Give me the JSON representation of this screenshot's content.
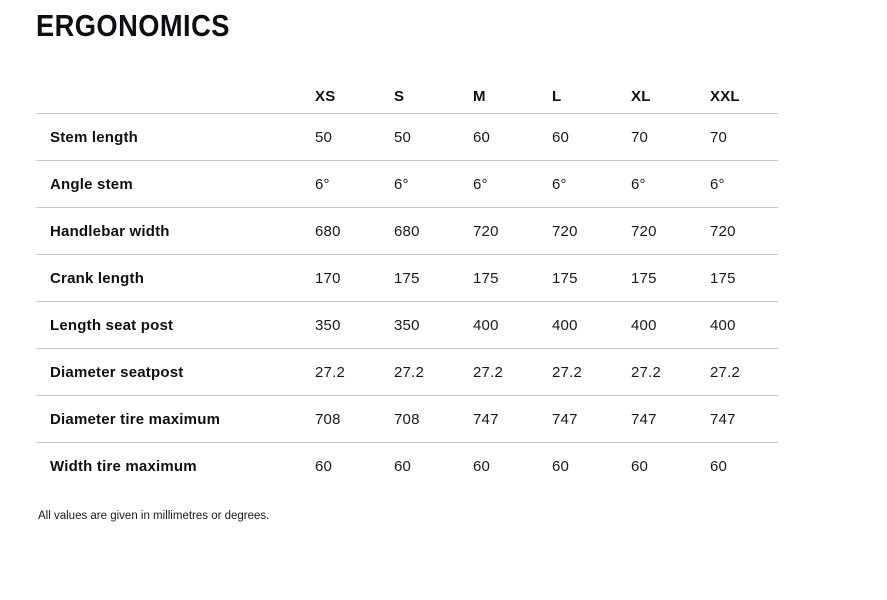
{
  "page": {
    "title": "ERGONOMICS",
    "footnote": "All values are given in millimetres or degrees."
  },
  "table": {
    "columns": [
      "XS",
      "S",
      "M",
      "L",
      "XL",
      "XXL"
    ],
    "rows": [
      {
        "label": "Stem length",
        "values": [
          "50",
          "50",
          "60",
          "60",
          "70",
          "70"
        ]
      },
      {
        "label": "Angle stem",
        "values": [
          "6°",
          "6°",
          "6°",
          "6°",
          "6°",
          "6°"
        ]
      },
      {
        "label": "Handlebar width",
        "values": [
          "680",
          "680",
          "720",
          "720",
          "720",
          "720"
        ]
      },
      {
        "label": "Crank length",
        "values": [
          "170",
          "175",
          "175",
          "175",
          "175",
          "175"
        ]
      },
      {
        "label": "Length seat post",
        "values": [
          "350",
          "350",
          "400",
          "400",
          "400",
          "400"
        ]
      },
      {
        "label": "Diameter seatpost",
        "values": [
          "27.2",
          "27.2",
          "27.2",
          "27.2",
          "27.2",
          "27.2"
        ]
      },
      {
        "label": "Diameter tire maximum",
        "values": [
          "708",
          "708",
          "747",
          "747",
          "747",
          "747"
        ]
      },
      {
        "label": "Width tire maximum",
        "values": [
          "60",
          "60",
          "60",
          "60",
          "60",
          "60"
        ]
      }
    ]
  },
  "colors": {
    "background": "#ffffff",
    "text": "#101014",
    "value_text": "#1a1a1a",
    "divider_line": "#c9c9c9"
  }
}
